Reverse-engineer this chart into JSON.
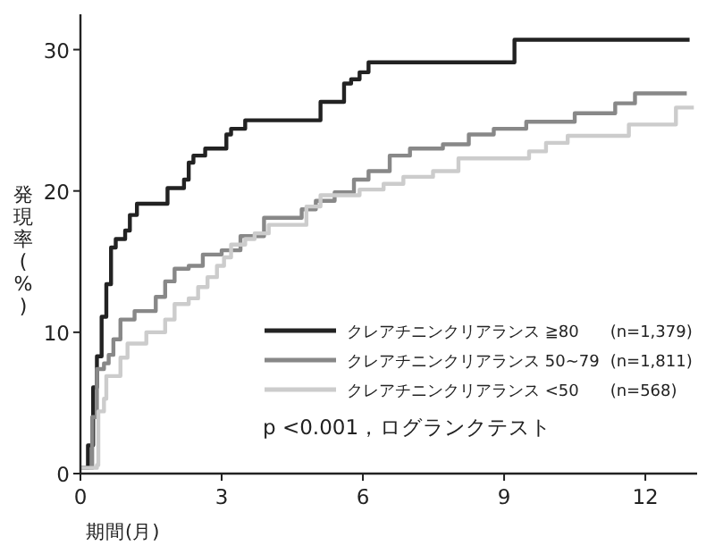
{
  "chart_data": {
    "type": "step",
    "xlabel": "期間(月)",
    "ylabel": "発現率(%)",
    "xlim": [
      0,
      13.1
    ],
    "ylim": [
      0,
      32.5
    ],
    "xticks": [
      0,
      3,
      6,
      9,
      12
    ],
    "yticks": [
      0,
      10,
      20,
      30
    ],
    "grid": false,
    "legend": "bottom right",
    "marker": "none",
    "line_style": "solid",
    "annotations": [
      "p <0.001，ログランクテスト"
    ],
    "series": [
      {
        "name": "クレアチニンクリアランス ≧80 (n=1,379)",
        "color": "#222222",
        "x": [
          0,
          0.16,
          0.27,
          0.35,
          0.45,
          0.55,
          0.65,
          0.75,
          0.95,
          1.05,
          1.2,
          1.85,
          2.2,
          2.3,
          2.4,
          2.65,
          3.1,
          3.2,
          3.5,
          5.1,
          5.6,
          5.75,
          5.93,
          6.12,
          9.22,
          12.94
        ],
        "values": [
          0.4,
          2,
          6.1,
          8.3,
          11.1,
          13.4,
          16,
          16.6,
          17.2,
          18.3,
          19.1,
          20.2,
          20.8,
          22,
          22.5,
          23,
          24,
          24.4,
          25,
          26.3,
          27.6,
          27.9,
          28.4,
          29.1,
          30.7,
          30.7
        ]
      },
      {
        "name": "クレアチニンクリアランス 50~79 (n=1,811)",
        "color": "#888888",
        "x": [
          0,
          0.25,
          0.35,
          0.5,
          0.6,
          0.7,
          0.85,
          1.15,
          1.6,
          1.8,
          2.0,
          2.3,
          2.6,
          3.0,
          3.4,
          3.9,
          4.7,
          5.0,
          5.4,
          5.81,
          6.12,
          6.57,
          7.0,
          7.7,
          8.25,
          8.78,
          9.47,
          10.5,
          11.36,
          11.78,
          12.88
        ],
        "values": [
          0.4,
          4,
          7.4,
          7.8,
          8.4,
          9.5,
          10.9,
          11.5,
          12.5,
          13.6,
          14.5,
          14.7,
          15.5,
          15.8,
          16.8,
          18.1,
          18.7,
          19.3,
          19.9,
          20.8,
          21.4,
          22.5,
          23.0,
          23.3,
          24.0,
          24.4,
          24.9,
          25.5,
          26.2,
          26.9,
          26.9
        ]
      },
      {
        "name": "クレアチニンクリアランス <50 (n=568)",
        "color": "#cccccc",
        "x": [
          0,
          0.35,
          0.38,
          0.5,
          0.55,
          0.85,
          1.0,
          1.4,
          1.8,
          2.0,
          2.3,
          2.5,
          2.7,
          2.9,
          3.05,
          3.2,
          3.5,
          3.7,
          4.0,
          4.8,
          5.1,
          5.93,
          6.44,
          6.86,
          7.49,
          8.03,
          9.53,
          9.89,
          10.35,
          11.65,
          12.65,
          13.03
        ],
        "values": [
          0.4,
          0.6,
          4.4,
          5.3,
          6.9,
          8.2,
          9.2,
          10.0,
          10.9,
          12,
          12.4,
          13.2,
          13.9,
          14.7,
          15.3,
          16.2,
          16.6,
          17,
          17.6,
          18.9,
          19.7,
          20.1,
          20.5,
          21.0,
          21.4,
          22.3,
          22.8,
          23.4,
          23.9,
          24.7,
          25.9,
          25.9
        ]
      }
    ]
  }
}
